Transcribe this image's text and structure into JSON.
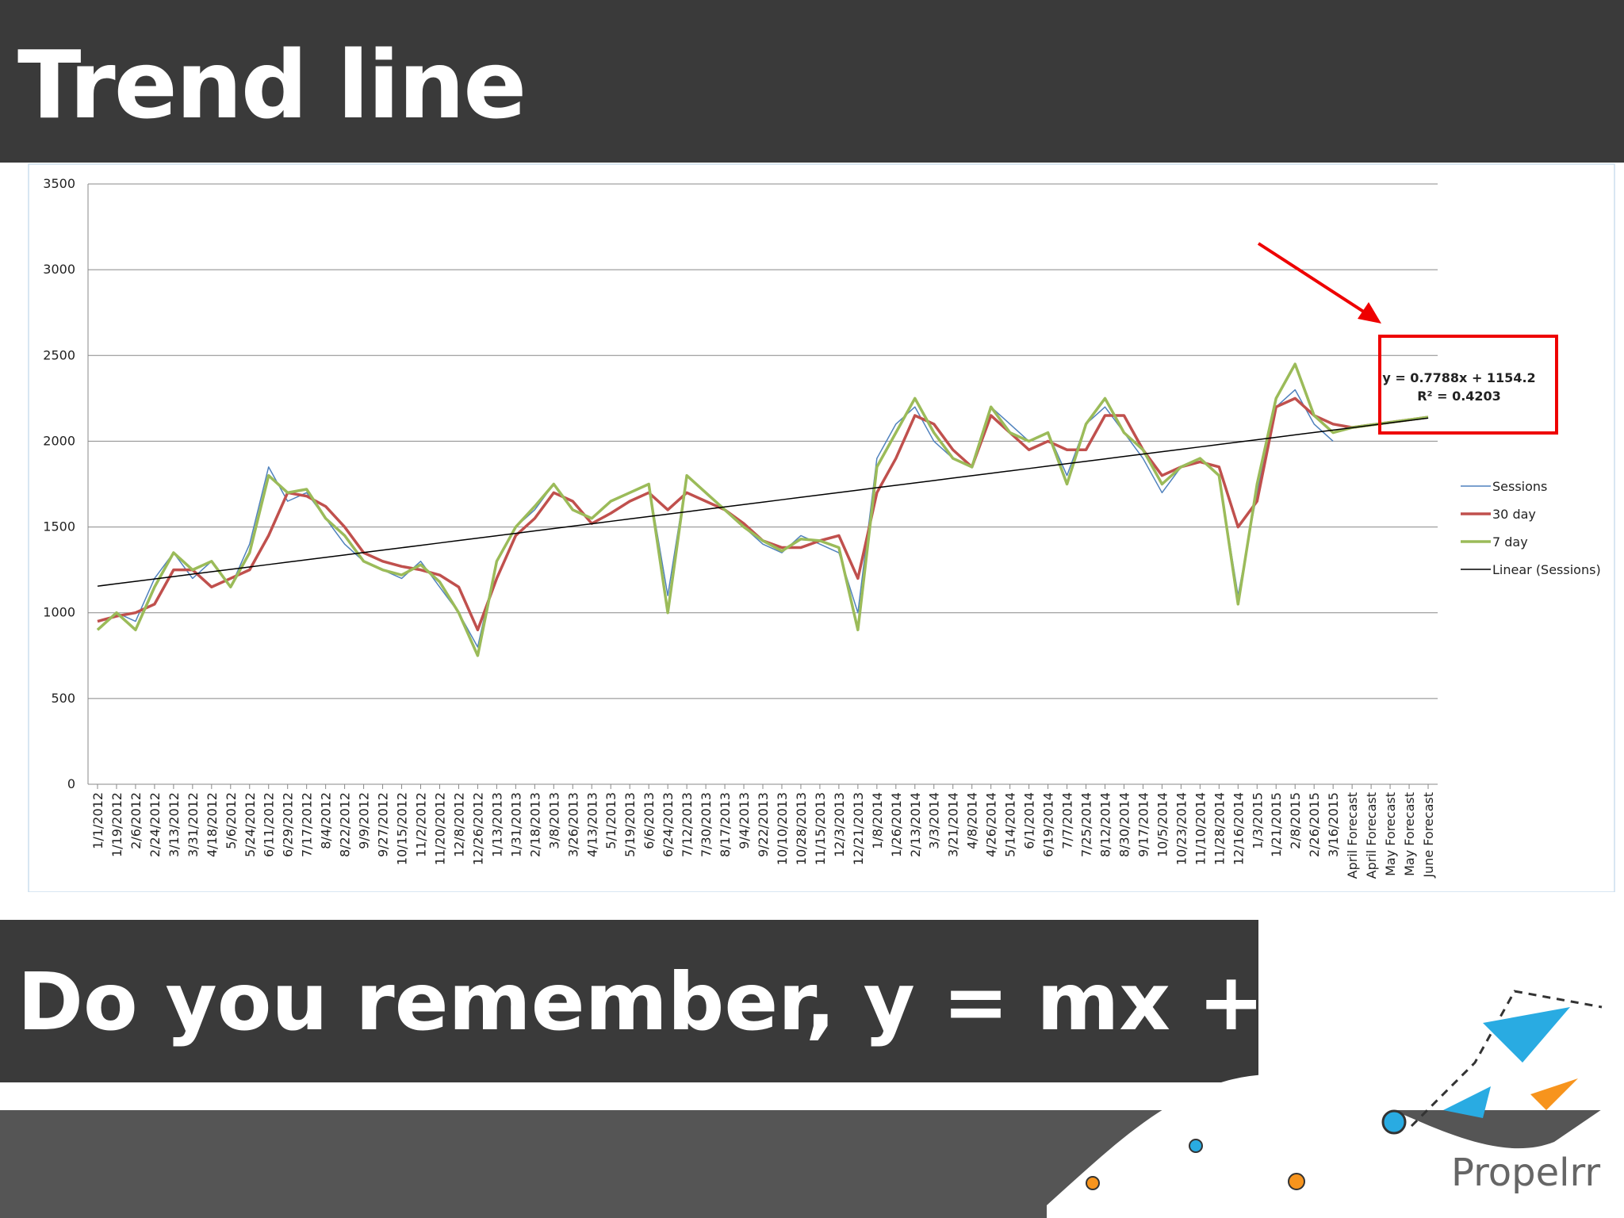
{
  "title": "Trend line",
  "question": "Do you remember, y = mx + b?",
  "logo": "Propelrr",
  "chart_data": {
    "type": "line",
    "categories": [
      "1/1/2012",
      "1/19/2012",
      "2/6/2012",
      "2/24/2012",
      "3/13/2012",
      "3/31/2012",
      "4/18/2012",
      "5/6/2012",
      "5/24/2012",
      "6/11/2012",
      "6/29/2012",
      "7/17/2012",
      "8/4/2012",
      "8/22/2012",
      "9/9/2012",
      "9/27/2012",
      "10/15/2012",
      "11/2/2012",
      "11/20/2012",
      "12/8/2012",
      "12/26/2012",
      "1/13/2013",
      "1/31/2013",
      "2/18/2013",
      "3/8/2013",
      "3/26/2013",
      "4/13/2013",
      "5/1/2013",
      "5/19/2013",
      "6/6/2013",
      "6/24/2013",
      "7/12/2013",
      "7/30/2013",
      "8/17/2013",
      "9/4/2013",
      "9/22/2013",
      "10/10/2013",
      "10/28/2013",
      "11/15/2013",
      "12/3/2013",
      "12/21/2013",
      "1/8/2014",
      "1/26/2014",
      "2/13/2014",
      "3/3/2014",
      "3/21/2014",
      "4/8/2014",
      "4/26/2014",
      "5/14/2014",
      "6/1/2014",
      "6/19/2014",
      "7/7/2014",
      "7/25/2014",
      "8/12/2014",
      "8/30/2014",
      "9/17/2014",
      "10/5/2014",
      "10/23/2014",
      "11/10/2014",
      "11/28/2014",
      "12/16/2014",
      "1/3/2015",
      "1/21/2015",
      "2/8/2015",
      "2/26/2015",
      "3/16/2015",
      "April Forecast",
      "April Forecast",
      "May Forecast",
      "May Forecast",
      "June Forecast"
    ],
    "series": [
      {
        "name": "Sessions",
        "color": "#4f81bd",
        "width": 1.5,
        "values": [
          900,
          1000,
          950,
          1200,
          1350,
          1200,
          1300,
          1150,
          1400,
          1850,
          1650,
          1700,
          1550,
          1400,
          1300,
          1250,
          1200,
          1300,
          1150,
          1000,
          800,
          1300,
          1500,
          1600,
          1750,
          1600,
          1550,
          1650,
          1700,
          1750,
          1100,
          1800,
          1700,
          1600,
          1500,
          1400,
          1350,
          1450,
          1400,
          1350,
          1000,
          1900,
          2100,
          2200,
          2000,
          1900,
          1850,
          2200,
          2100,
          2000,
          2050,
          1800,
          2100,
          2200,
          2050,
          1900,
          1700,
          1850,
          1900,
          1800,
          1100,
          1700,
          2200,
          2300,
          2100,
          2000,
          null,
          null,
          null,
          null,
          null
        ]
      },
      {
        "name": "30 day",
        "color": "#c0504d",
        "width": 3.5,
        "values": [
          950,
          980,
          1000,
          1050,
          1250,
          1250,
          1150,
          1200,
          1250,
          1450,
          1700,
          1680,
          1620,
          1500,
          1350,
          1300,
          1270,
          1250,
          1220,
          1150,
          900,
          1200,
          1450,
          1550,
          1700,
          1650,
          1520,
          1580,
          1650,
          1700,
          1600,
          1700,
          1650,
          1600,
          1520,
          1420,
          1380,
          1380,
          1420,
          1450,
          1200,
          1700,
          1900,
          2150,
          2100,
          1950,
          1850,
          2150,
          2050,
          1950,
          2000,
          1950,
          1950,
          2150,
          2150,
          1950,
          1800,
          1850,
          1880,
          1850,
          1500,
          1650,
          2200,
          2250,
          2150,
          2100,
          2080,
          2095,
          2110,
          2125,
          2140
        ]
      },
      {
        "name": "7 day",
        "color": "#9bbb59",
        "width": 3.5,
        "values": [
          900,
          1000,
          900,
          1150,
          1350,
          1250,
          1300,
          1150,
          1350,
          1800,
          1700,
          1720,
          1550,
          1450,
          1300,
          1250,
          1220,
          1280,
          1180,
          1000,
          750,
          1300,
          1500,
          1620,
          1750,
          1600,
          1550,
          1650,
          1700,
          1750,
          1000,
          1800,
          1700,
          1600,
          1500,
          1420,
          1360,
          1430,
          1420,
          1380,
          900,
          1850,
          2050,
          2250,
          2050,
          1900,
          1850,
          2200,
          2050,
          2000,
          2050,
          1750,
          2100,
          2250,
          2050,
          1950,
          1750,
          1850,
          1900,
          1800,
          1050,
          1750,
          2250,
          2450,
          2150,
          2050,
          2080,
          2095,
          2110,
          2125,
          2140
        ]
      },
      {
        "name": "Linear (Sessions)",
        "color": "#000000",
        "width": 1.5,
        "values": [
          1155,
          1169,
          1183,
          1197,
          1211,
          1225,
          1239,
          1253,
          1267,
          1281,
          1295,
          1309,
          1323,
          1337,
          1351,
          1365,
          1379,
          1393,
          1407,
          1421,
          1435,
          1449,
          1463,
          1477,
          1491,
          1505,
          1519,
          1533,
          1547,
          1561,
          1575,
          1589,
          1603,
          1617,
          1631,
          1645,
          1659,
          1673,
          1687,
          1701,
          1715,
          1729,
          1743,
          1757,
          1771,
          1785,
          1799,
          1813,
          1827,
          1841,
          1855,
          1869,
          1883,
          1897,
          1911,
          1925,
          1939,
          1953,
          1967,
          1981,
          1995,
          2009,
          2023,
          2037,
          2051,
          2065,
          2079,
          2093,
          2107,
          2121,
          2135
        ]
      }
    ],
    "ylim": [
      0,
      3500
    ],
    "yticks": [
      0,
      500,
      1000,
      1500,
      2000,
      2500,
      3000,
      3500
    ],
    "grid": true,
    "legend": "right",
    "annotations": [
      "y = 0.7788x + 1154.2",
      "R² = 0.4203"
    ]
  }
}
